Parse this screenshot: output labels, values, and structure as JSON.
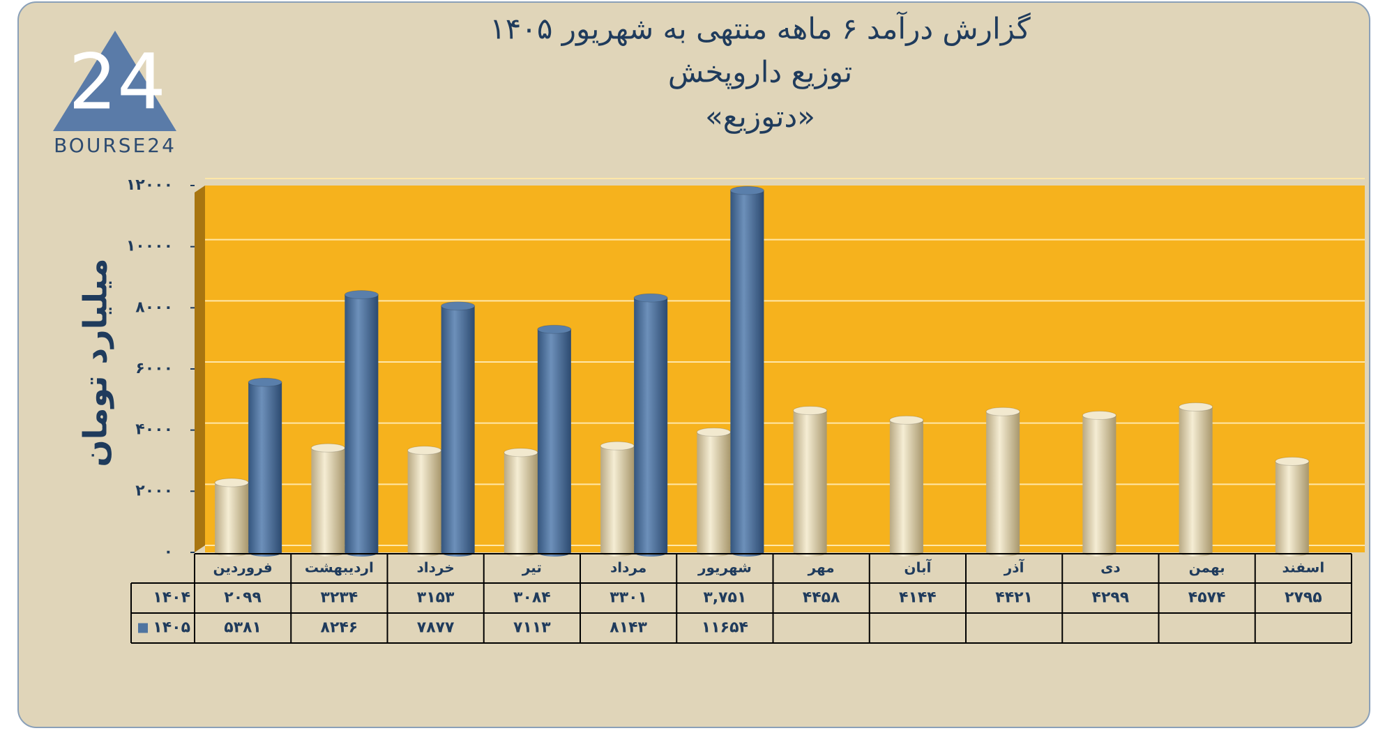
{
  "logo_mark": "24",
  "logo": "BOURSE24",
  "chart_data": {
    "type": "bar",
    "title": "گزارش  درآمد ۶ ماهه منتهی به شهریور ۱۴۰۵",
    "subtitle": "توزیع داروپخش",
    "subtitle2": "«دتوزیع»",
    "ylabel": "میلیارد تومان",
    "categories": [
      "فروردین",
      "اردیبهشت",
      "خرداد",
      "تیر",
      "مرداد",
      "شهریور",
      "مهر",
      "آبان",
      "آذر",
      "دی",
      "بهمن",
      "اسفند"
    ],
    "series": [
      {
        "name": "۱۴۰۴",
        "color": "#e8dcb8",
        "values": [
          2099,
          3234,
          3153,
          3084,
          3301,
          3751,
          4458,
          4144,
          4421,
          4299,
          4574,
          2795
        ],
        "value_labels": [
          "۲۰۹۹",
          "۳۲۳۴",
          "۳۱۵۳",
          "۳۰۸۴",
          "۳۳۰۱",
          "۳,۷۵۱",
          "۴۴۵۸",
          "۴۱۴۴",
          "۴۴۲۱",
          "۴۲۹۹",
          "۴۵۷۴",
          "۲۷۹۵"
        ]
      },
      {
        "name": "۱۴۰۵",
        "color": "#4f74a0",
        "values": [
          5381,
          8246,
          7877,
          7113,
          8143,
          11654,
          null,
          null,
          null,
          null,
          null,
          null
        ],
        "value_labels": [
          "۵۳۸۱",
          "۸۲۴۶",
          "۷۸۷۷",
          "۷۱۱۳",
          "۸۱۴۳",
          "۱۱۶۵۴",
          null,
          null,
          null,
          null,
          null,
          null
        ]
      }
    ],
    "ylim": [
      0,
      12000
    ],
    "yticks": [
      {
        "value": 0,
        "label": "۰"
      },
      {
        "value": 2000,
        "label": "۲۰۰۰"
      },
      {
        "value": 4000,
        "label": "۴۰۰۰"
      },
      {
        "value": 6000,
        "label": "۶۰۰۰"
      },
      {
        "value": 8000,
        "label": "۸۰۰۰"
      },
      {
        "value": 10000,
        "label": "۱۰۰۰۰"
      },
      {
        "value": 12000,
        "label": "۱۲۰۰۰"
      }
    ],
    "grid": true,
    "background": "#f6b21d"
  }
}
